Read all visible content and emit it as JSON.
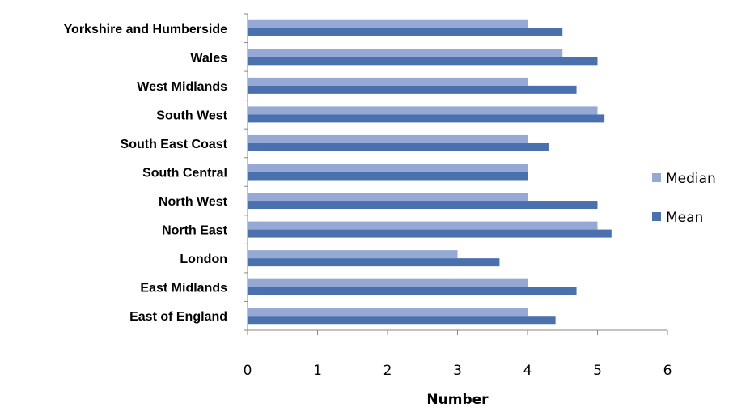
{
  "chart_data": {
    "type": "bar",
    "orientation": "horizontal",
    "categories": [
      "East of England",
      "East Midlands",
      "London",
      "North East",
      "North West",
      "South Central",
      "South East Coast",
      "South West",
      "West Midlands",
      "Wales",
      "Yorkshire and Humberside"
    ],
    "series": [
      {
        "name": "Median",
        "color": "#95A9D4",
        "values": [
          4,
          4,
          3,
          5,
          4,
          4,
          4,
          5,
          4,
          4.5,
          4
        ]
      },
      {
        "name": "Mean",
        "color": "#4A70AE",
        "values": [
          4.4,
          4.7,
          3.6,
          5.2,
          5,
          4,
          4.3,
          5.1,
          4.7,
          5,
          4.5
        ]
      }
    ],
    "title": "",
    "xlabel": "Number",
    "ylabel": "",
    "xlim": [
      0,
      6
    ],
    "xticks": [
      "0",
      "1",
      "2",
      "3",
      "4",
      "5",
      "6"
    ],
    "grid": false,
    "legend_position": "right",
    "legend_order": [
      "Median",
      "Mean"
    ]
  }
}
